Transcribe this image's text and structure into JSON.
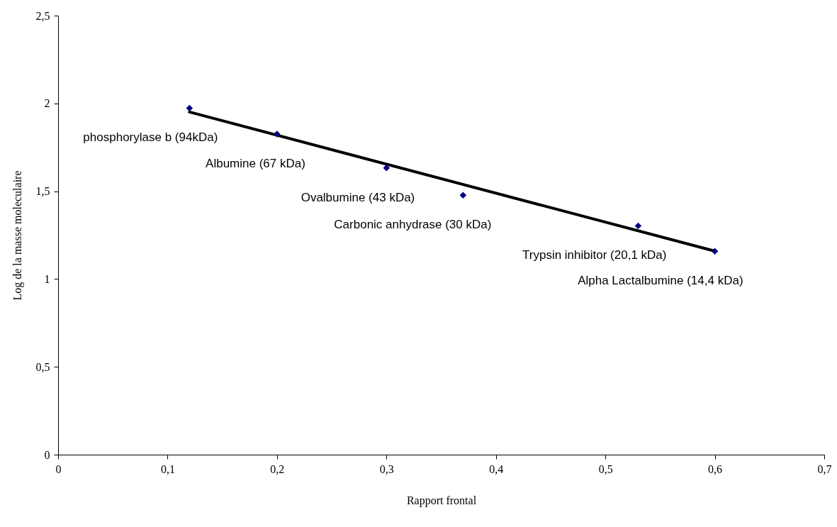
{
  "chart_data": {
    "type": "scatter",
    "xlabel": "Rapport frontal",
    "ylabel": "Log de la masse moleculaire",
    "xlim": [
      0,
      0.7
    ],
    "xticks": [
      0,
      {
        "value": 0.1,
        "label": "0,1"
      },
      {
        "value": 0.2,
        "label": "0,2"
      },
      {
        "value": 0.3,
        "label": "0,3"
      },
      {
        "value": 0.4,
        "label": "0,4"
      },
      {
        "value": 0.5,
        "label": "0,5"
      },
      {
        "value": 0.6,
        "label": "0,6"
      },
      {
        "value": 0.7,
        "label": "0,7"
      }
    ],
    "ylim": [
      0,
      2.5
    ],
    "yticks": [
      0,
      {
        "value": 0.5,
        "label": "0,5"
      },
      1,
      {
        "value": 1.5,
        "label": "1,5"
      },
      2,
      {
        "value": 2.5,
        "label": "2,5"
      }
    ],
    "grid": false,
    "marker": "diamond",
    "series": [
      {
        "type": "line",
        "color": "#000000",
        "x": [
          0.12,
          0.6
        ],
        "values": [
          1.951,
          1.159
        ],
        "marker": "none",
        "line_style": "solid"
      },
      {
        "color": "#000080",
        "x": [
          0.12,
          0.2,
          0.3,
          0.37,
          0.53,
          0.6
        ],
        "values": [
          1.973,
          1.826,
          1.633,
          1.477,
          1.303,
          1.158
        ]
      }
    ],
    "annotations": [
      {
        "text": "phosphorylase b (94kDa)",
        "x": 0.12,
        "y": 1.973
      },
      {
        "text": "Albumine (67 kDa)",
        "x": 0.2,
        "y": 1.826
      },
      {
        "text": "Ovalbumine (43 kDa)",
        "x": 0.3,
        "y": 1.633
      },
      {
        "text": "Carbonic anhydrase  (30 kDa)",
        "x": 0.37,
        "y": 1.477
      },
      {
        "text": "Trypsin inhibitor (20,1 kDa)",
        "x": 0.53,
        "y": 1.303
      },
      {
        "text": "Alpha Lactalbumine (14,4 kDa)",
        "x": 0.6,
        "y": 1.158
      }
    ]
  }
}
